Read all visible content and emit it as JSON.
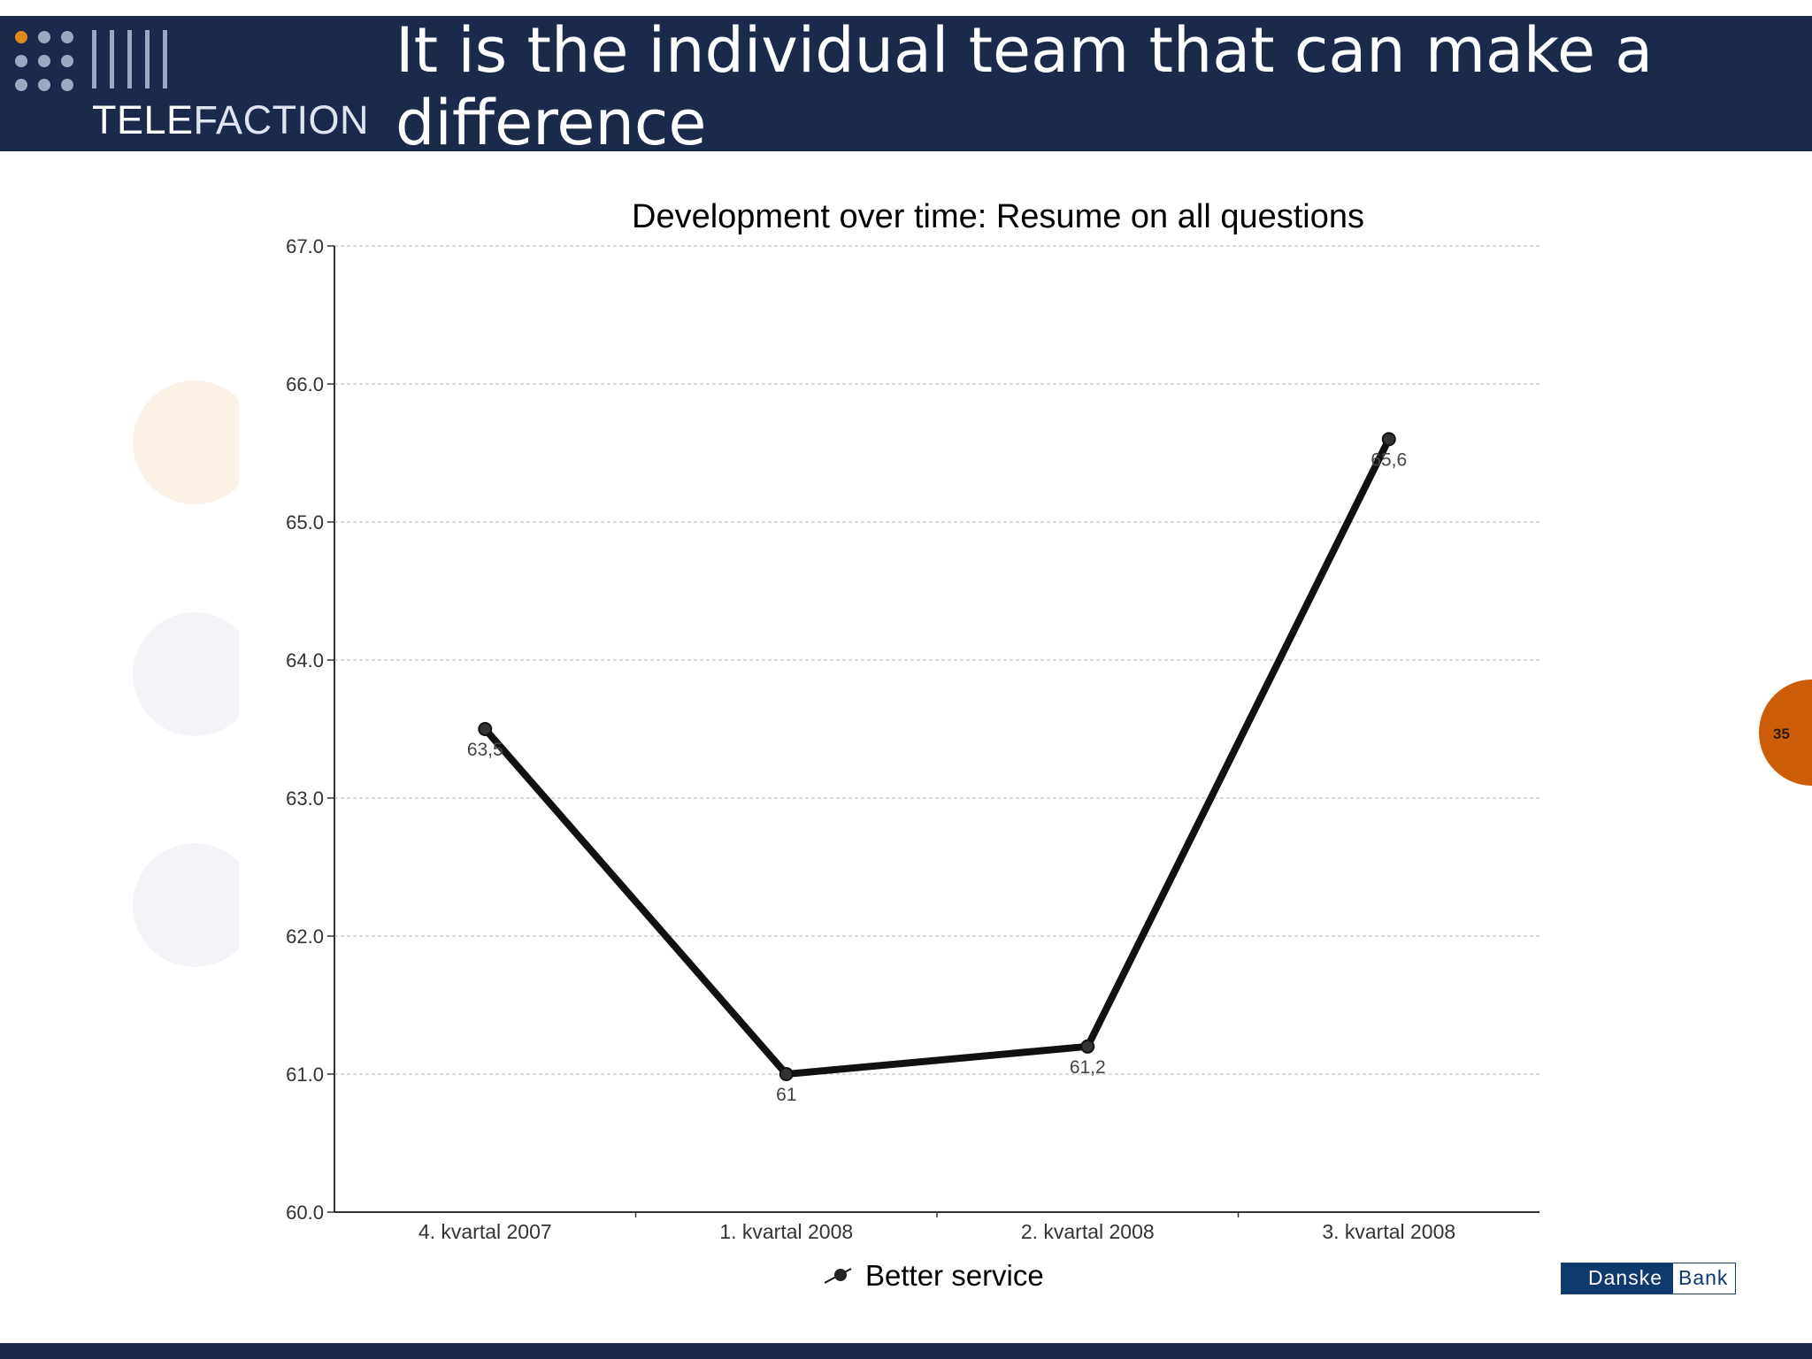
{
  "header": {
    "title": "It is the individual team that can make a difference",
    "brand_part1": "TELE",
    "brand_part2": "FACTION"
  },
  "page_number": "35",
  "footer_logo": {
    "part1": "Danske",
    "part2": "Bank"
  },
  "colors": {
    "header_bg": "#1b2a4a",
    "accent_orange": "#cc5e0a",
    "line": "#111111",
    "bank_blue": "#0e3a6e"
  },
  "chart_data": {
    "type": "line",
    "title": "Development over time: Resume on all questions",
    "categories": [
      "4. kvartal 2007",
      "1. kvartal 2008",
      "2. kvartal 2008",
      "3. kvartal 2008"
    ],
    "series": [
      {
        "name": "Better service",
        "values": [
          63.5,
          61,
          61.2,
          65.6
        ],
        "labels": [
          "63,5",
          "61",
          "61,2",
          "65,6"
        ]
      }
    ],
    "ylim": [
      60,
      67
    ],
    "yticks": [
      "60.0",
      "61.0",
      "62.0",
      "63.0",
      "64.0",
      "65.0",
      "66.0",
      "67.0"
    ],
    "grid": true,
    "legend_position": "bottom"
  }
}
